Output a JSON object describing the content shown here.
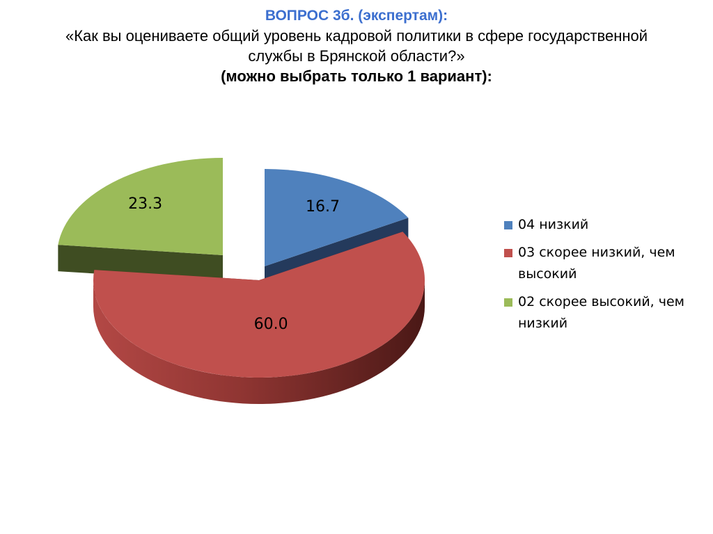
{
  "title": {
    "line1": "ВОПРОС 3б. (экспертам):",
    "line2": "«Как вы оцениваете общий уровень кадровой политики в сфере государственной",
    "line3": "службы в Брянской области?»",
    "line4": "(можно выбрать только 1 вариант):"
  },
  "chart_data": {
    "type": "pie",
    "style": "3d exploded",
    "legend_position": "right",
    "series": [
      {
        "name": "04  низкий",
        "value": 16.7,
        "label": "16.7",
        "color": "#4f81bd",
        "side_color": "#243a5c"
      },
      {
        "name": "03  скорее низкий, чем высокий",
        "value": 60.0,
        "label": "60.0",
        "color": "#c0504d",
        "side_color": "#6b2523"
      },
      {
        "name": "02  скорее высокий, чем низкий",
        "value": 23.3,
        "label": "23.3",
        "color": "#9bbb59",
        "side_color": "#3f4d22"
      }
    ]
  }
}
